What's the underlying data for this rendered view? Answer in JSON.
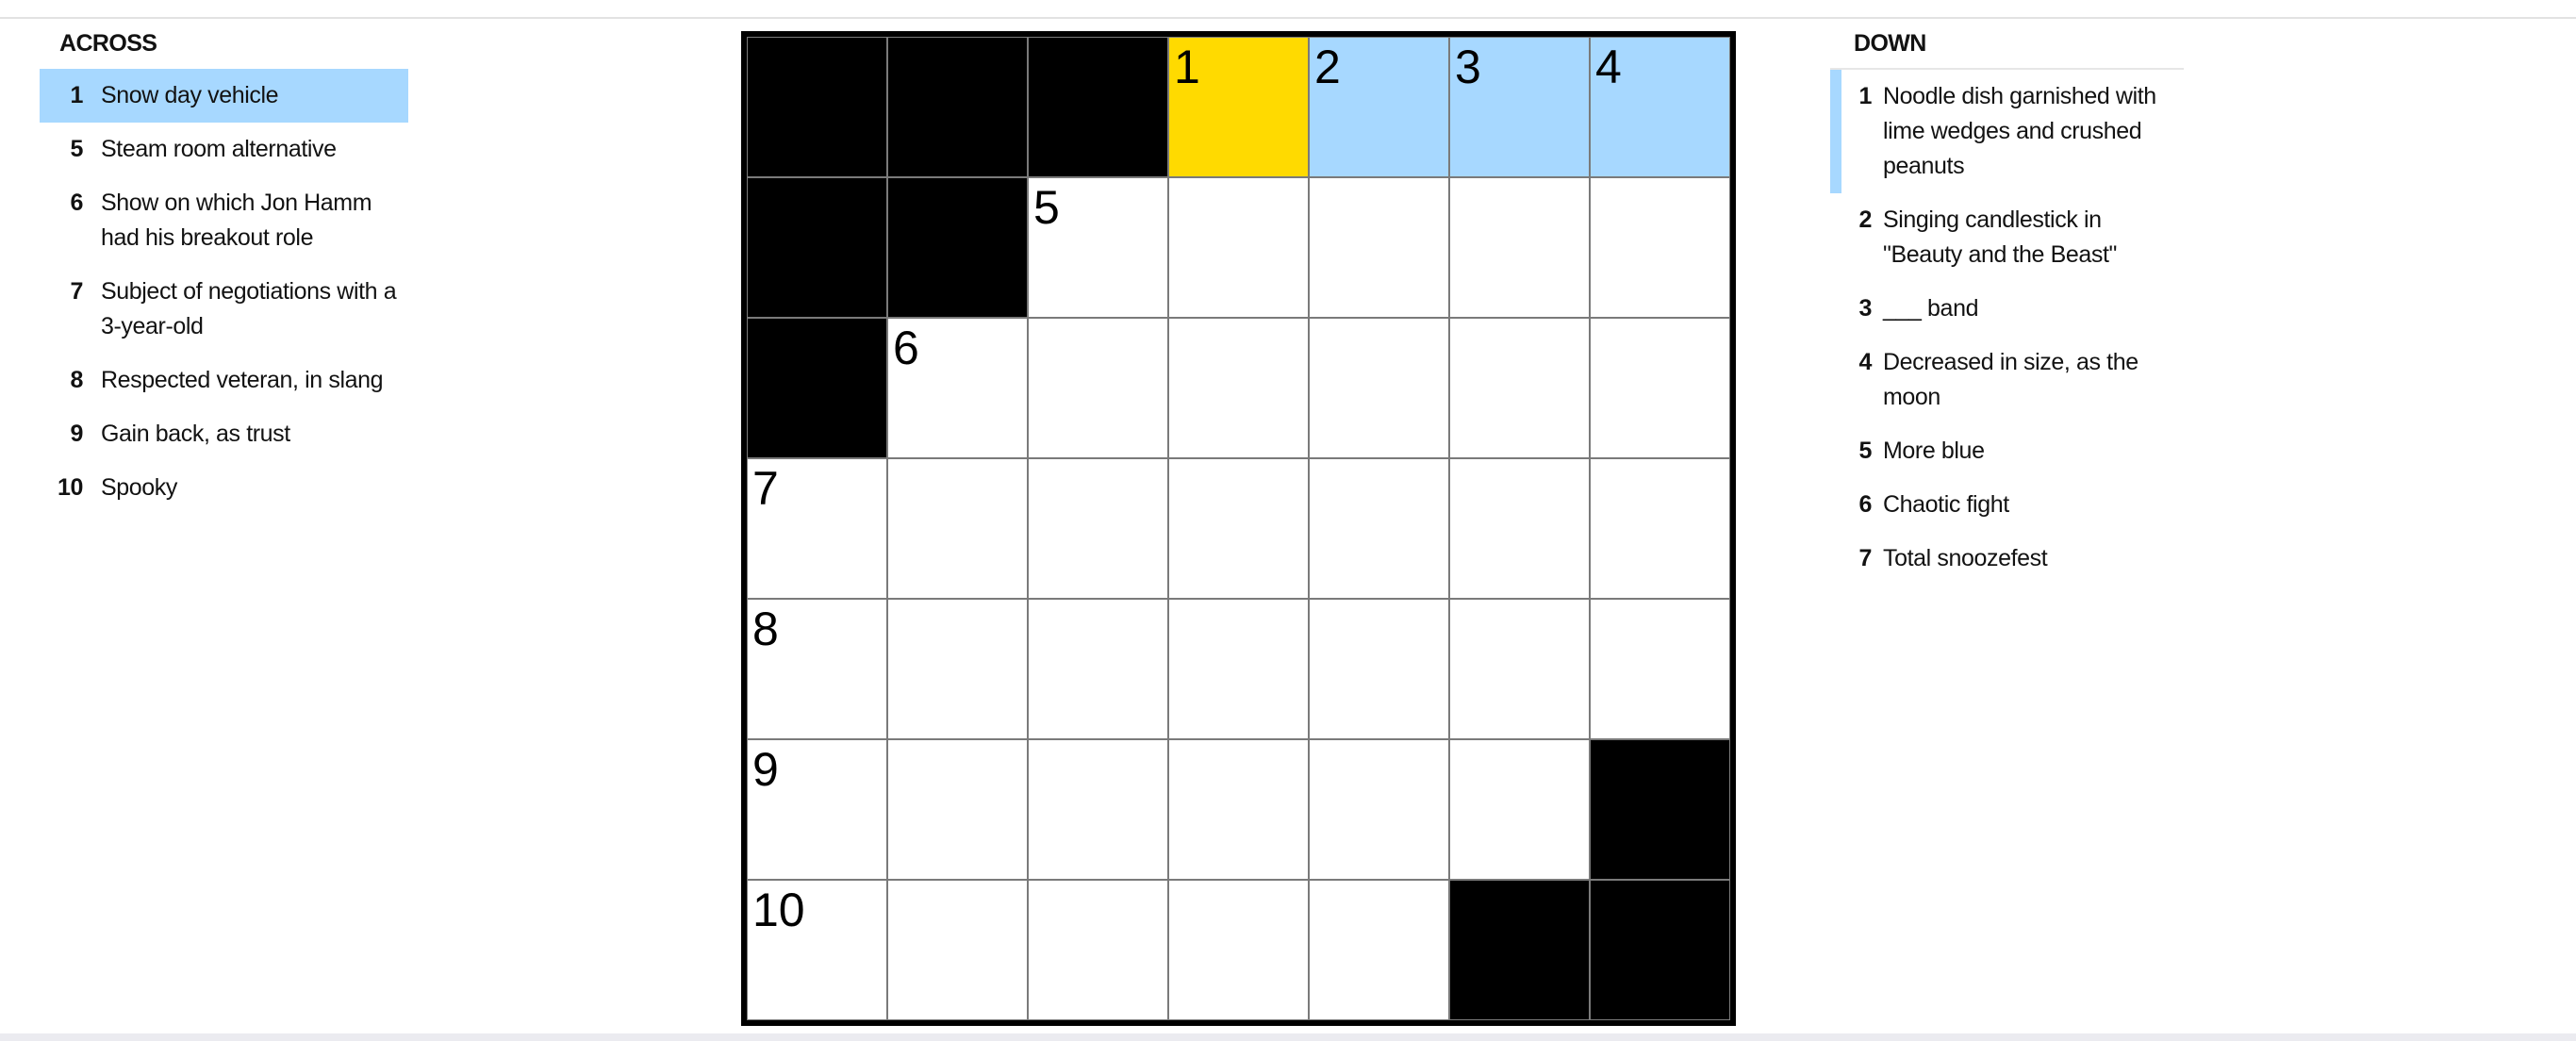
{
  "across": {
    "title": "ACROSS",
    "clues": [
      {
        "num": "1",
        "text": "Snow day vehicle",
        "active": true
      },
      {
        "num": "5",
        "text": "Steam room alternative"
      },
      {
        "num": "6",
        "text": "Show on which Jon Hamm had his breakout role"
      },
      {
        "num": "7",
        "text": "Subject of negotiations with a 3-year-old"
      },
      {
        "num": "8",
        "text": "Respected veteran, in slang"
      },
      {
        "num": "9",
        "text": "Gain back, as trust"
      },
      {
        "num": "10",
        "text": "Spooky"
      }
    ]
  },
  "down": {
    "title": "DOWN",
    "clues": [
      {
        "num": "1",
        "text": "Noodle dish garnished with lime wedges and crushed peanuts",
        "active": true
      },
      {
        "num": "2",
        "text": "Singing candlestick in \"Beauty and the Beast\""
      },
      {
        "num": "3",
        "text": "___ band"
      },
      {
        "num": "4",
        "text": "Decreased in size, as the moon"
      },
      {
        "num": "5",
        "text": "More blue"
      },
      {
        "num": "6",
        "text": "Chaotic fight"
      },
      {
        "num": "7",
        "text": "Total snoozefest"
      }
    ]
  },
  "colors": {
    "highlight": "#a7d8ff",
    "selected": "#ffda00",
    "block": "#000000"
  },
  "grid": {
    "rows": [
      [
        "#",
        "#",
        "#",
        "1",
        "2",
        "3",
        "4"
      ],
      [
        "#",
        "#",
        "5",
        "",
        "",
        "",
        ""
      ],
      [
        "#",
        "6",
        "",
        "",
        "",
        "",
        ""
      ],
      [
        "7",
        "",
        "",
        "",
        "",
        "",
        ""
      ],
      [
        "8",
        "",
        "",
        "",
        "",
        "",
        ""
      ],
      [
        "9",
        "",
        "",
        "",
        "",
        "",
        "#"
      ],
      [
        "10",
        "",
        "",
        "",
        "",
        "#",
        "#"
      ]
    ],
    "selected_cell": {
      "row": 0,
      "col": 3
    },
    "highlighted_word": {
      "row": 0,
      "cols": [
        3,
        4,
        5,
        6
      ]
    }
  }
}
